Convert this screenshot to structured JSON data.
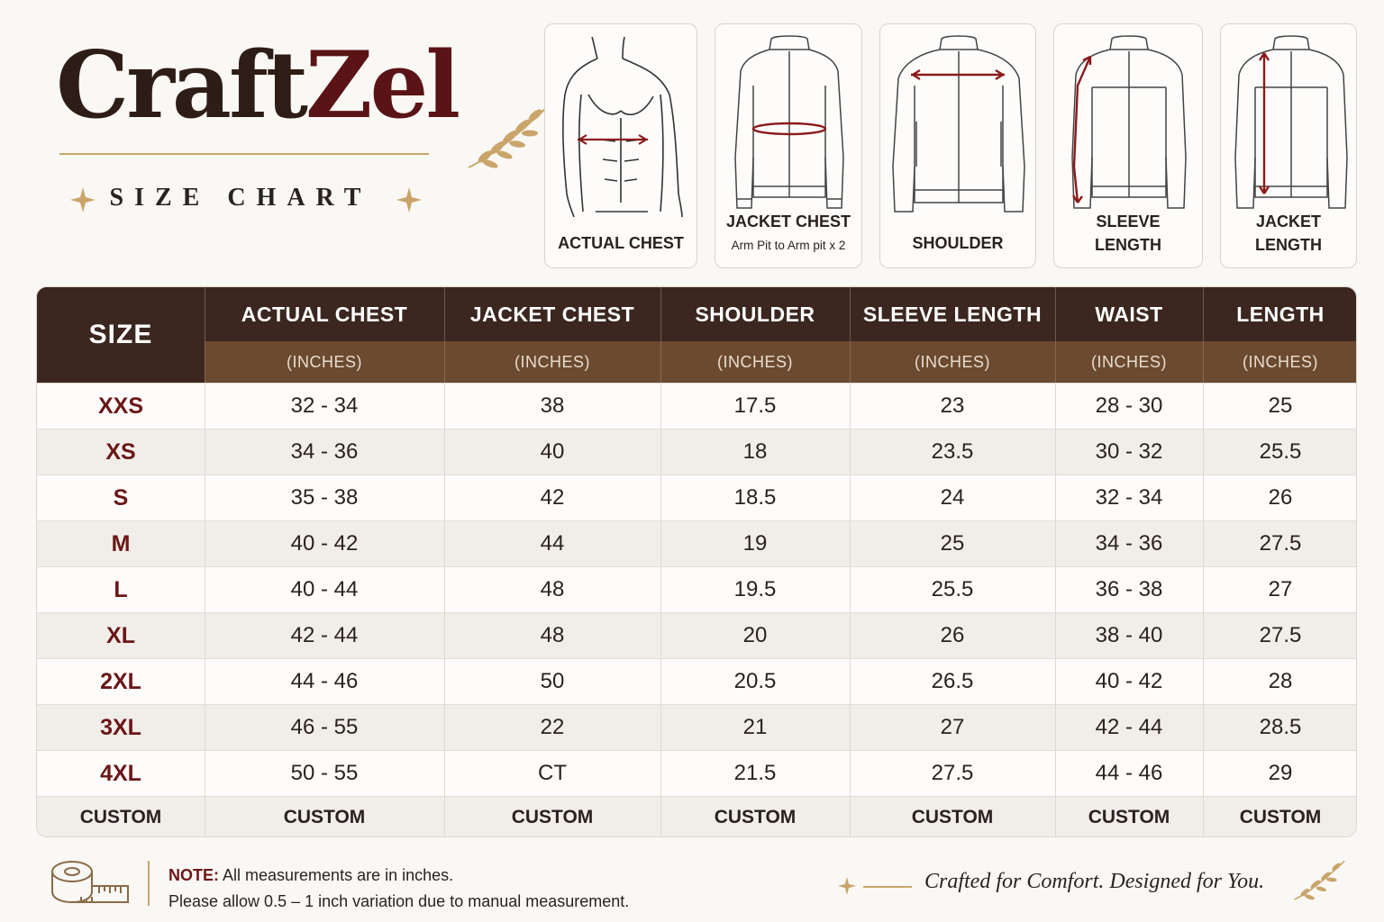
{
  "brand": {
    "name_part1": "Craft",
    "name_part2": "Zel",
    "subtitle": "SIZE CHART",
    "colors": {
      "dark": "#2e1d17",
      "maroon": "#5a1416",
      "gold": "#c9a56a"
    }
  },
  "cards": [
    {
      "label_line1": "ACTUAL CHEST",
      "label_line2": "",
      "sub": "",
      "icon": "torso-chest-icon"
    },
    {
      "label_line1": "JACKET CHEST",
      "label_line2": "",
      "sub": "Arm Pit to Arm pit x 2",
      "icon": "jacket-chest-icon"
    },
    {
      "label_line1": "SHOULDER",
      "label_line2": "",
      "sub": "",
      "icon": "jacket-shoulder-icon"
    },
    {
      "label_line1": "SLEEVE",
      "label_line2": "LENGTH",
      "sub": "",
      "icon": "jacket-sleeve-icon"
    },
    {
      "label_line1": "JACKET",
      "label_line2": "LENGTH",
      "sub": "",
      "icon": "jacket-length-icon"
    }
  ],
  "table": {
    "size_header": "SIZE",
    "columns": [
      {
        "title": "ACTUAL CHEST",
        "unit": "(INCHES)"
      },
      {
        "title": "JACKET CHEST",
        "unit": "(INCHES)"
      },
      {
        "title": "SHOULDER",
        "unit": "(INCHES)"
      },
      {
        "title": "SLEEVE LENGTH",
        "unit": "(INCHES)"
      },
      {
        "title": "WAIST",
        "unit": "(INCHES)"
      },
      {
        "title": "LENGTH",
        "unit": "(INCHES)"
      }
    ],
    "rows": [
      {
        "size": "XXS",
        "values": [
          "32 - 34",
          "38",
          "17.5",
          "23",
          "28 - 30",
          "25"
        ]
      },
      {
        "size": "XS",
        "values": [
          "34 - 36",
          "40",
          "18",
          "23.5",
          "30 - 32",
          "25.5"
        ]
      },
      {
        "size": "S",
        "values": [
          "35 - 38",
          "42",
          "18.5",
          "24",
          "32 - 34",
          "26"
        ]
      },
      {
        "size": "M",
        "values": [
          "40 - 42",
          "44",
          "19",
          "25",
          "34 - 36",
          "27.5"
        ]
      },
      {
        "size": "L",
        "values": [
          "40 - 44",
          "48",
          "19.5",
          "25.5",
          "36 - 38",
          "27"
        ]
      },
      {
        "size": "XL",
        "values": [
          "42 - 44",
          "48",
          "20",
          "26",
          "38 - 40",
          "27.5"
        ]
      },
      {
        "size": "2XL",
        "values": [
          "44 - 46",
          "50",
          "20.5",
          "26.5",
          "40 - 42",
          "28"
        ]
      },
      {
        "size": "3XL",
        "values": [
          "46 - 55",
          "22",
          "21",
          "27",
          "42 - 44",
          "28.5"
        ]
      },
      {
        "size": "4XL",
        "values": [
          "50 - 55",
          "CT",
          "21.5",
          "27.5",
          "44 - 46",
          "29"
        ]
      },
      {
        "size": "CUSTOM",
        "values": [
          "CUSTOM",
          "CUSTOM",
          "CUSTOM",
          "CUSTOM",
          "CUSTOM",
          "CUSTOM"
        ]
      }
    ]
  },
  "footer": {
    "note_label": "NOTE:",
    "note_line1": "All measurements are in inches.",
    "note_line2": "Please allow 0.5 – 1 inch variation due to manual measurement.",
    "tagline": "Crafted for Comfort. Designed for You."
  }
}
